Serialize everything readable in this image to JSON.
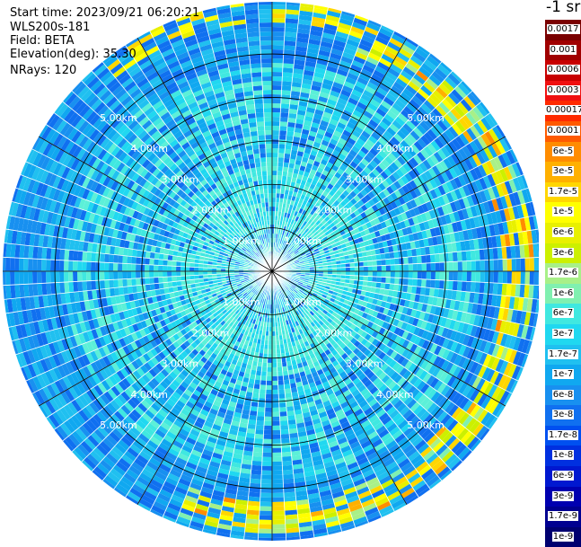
{
  "header": {
    "start_time": "Start time: 2023/09/21 06:20:21",
    "instrument": "WLS200s-181",
    "field": "Field: BETA",
    "elevation": "Elevation(deg): 35.30",
    "nrays": "NRays: 120"
  },
  "units_label": "-1 sr",
  "legend": {
    "labels": [
      "0.0017",
      "0.001",
      "0.0006",
      "0.0003",
      "0.00017",
      "0.0001",
      "6e-5",
      "3e-5",
      "1.7e-5",
      "1e-5",
      "6e-6",
      "3e-6",
      "1.7e-6",
      "1e-6",
      "6e-7",
      "3e-7",
      "1.7e-7",
      "1e-7",
      "6e-8",
      "3e-8",
      "1.7e-8",
      "1e-8",
      "6e-9",
      "3e-9",
      "1.7e-9",
      "1e-9"
    ],
    "colors": [
      "#7a0000",
      "#a00000",
      "#c80000",
      "#f01010",
      "#ff2a00",
      "#ff5a00",
      "#ff8c00",
      "#ffb000",
      "#ffd600",
      "#ffff00",
      "#e8f000",
      "#ccf000",
      "#a8f088",
      "#80f0b0",
      "#40e8e0",
      "#20d8f0",
      "#20c0f0",
      "#10a8f0",
      "#1890f0",
      "#1070f0",
      "#0050f0",
      "#0030e0",
      "#0018d0",
      "#0000b0",
      "#000090",
      "#000070"
    ]
  },
  "chart_data": {
    "type": "heatmap",
    "subtype": "polar-ppi",
    "field": "BETA",
    "nrays": 120,
    "elevation_deg": 35.3,
    "range_rings_km": [
      1.0,
      2.0,
      3.0,
      4.0,
      5.0
    ],
    "ring_labels": [
      "1.00km",
      "2.00km",
      "3.00km",
      "4.00km",
      "5.00km"
    ],
    "max_range_km": 6.2,
    "spoke_angles_deg": [
      0,
      30,
      60,
      90,
      120,
      150,
      180,
      210,
      240,
      270,
      300,
      330
    ],
    "colorbar_range": [
      1e-09,
      0.0017
    ],
    "scale": "log",
    "radial_profile": [
      {
        "range_km": 0.0,
        "value_class": "blue-cyan"
      },
      {
        "range_km": 1.0,
        "value_class": "cyan"
      },
      {
        "range_km": 2.5,
        "value_class": "cyan-blue"
      },
      {
        "range_km": 5.0,
        "value_class": "blue"
      },
      {
        "range_km": 5.6,
        "value_class": "green-yellow (SE/E/S sectors)"
      }
    ]
  }
}
